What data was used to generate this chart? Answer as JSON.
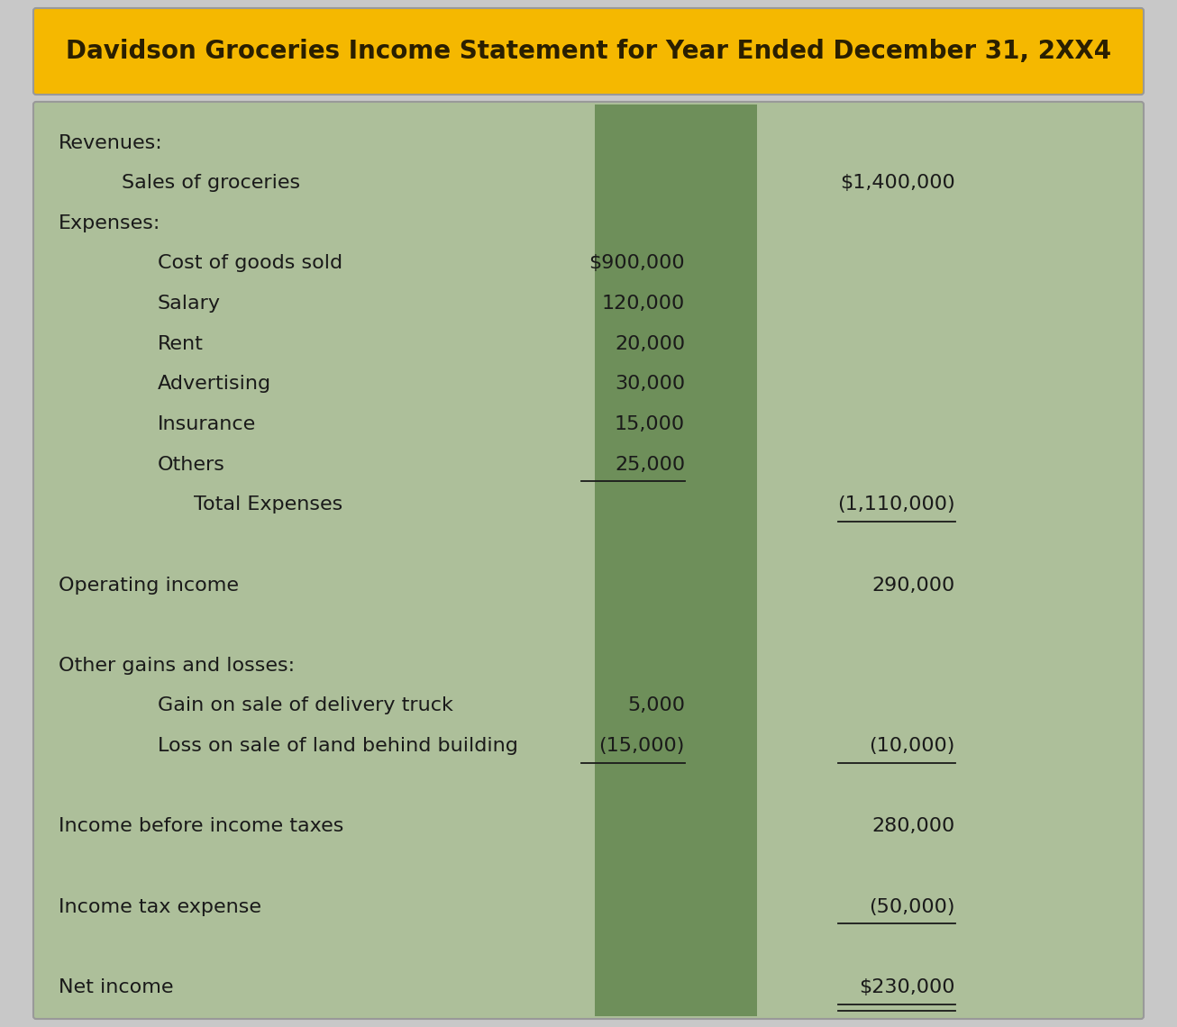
{
  "title": "Davidson Groceries Income Statement for Year Ended December 31, 2XX4",
  "title_bg": "#F5B800",
  "title_color": "#2a1f00",
  "title_fontsize": 20,
  "body_bg_light": "#adbf9a",
  "body_bg_dark": "#6e8f5a",
  "outer_bg": "#c8c8c8",
  "text_color": "#1a1a1a",
  "rows": [
    {
      "indent": 0,
      "label": "Revenues:",
      "col1": "",
      "col2": "",
      "ul1": false,
      "ul2": false,
      "spacer": false
    },
    {
      "indent": 1,
      "label": "Sales of groceries",
      "col1": "",
      "col2": "$1,400,000",
      "ul1": false,
      "ul2": false,
      "spacer": false
    },
    {
      "indent": 0,
      "label": "Expenses:",
      "col1": "",
      "col2": "",
      "ul1": false,
      "ul2": false,
      "spacer": false
    },
    {
      "indent": 2,
      "label": "Cost of goods sold",
      "col1": "$900,000",
      "col2": "",
      "ul1": false,
      "ul2": false,
      "spacer": false
    },
    {
      "indent": 2,
      "label": "Salary",
      "col1": "120,000",
      "col2": "",
      "ul1": false,
      "ul2": false,
      "spacer": false
    },
    {
      "indent": 2,
      "label": "Rent",
      "col1": "20,000",
      "col2": "",
      "ul1": false,
      "ul2": false,
      "spacer": false
    },
    {
      "indent": 2,
      "label": "Advertising",
      "col1": "30,000",
      "col2": "",
      "ul1": false,
      "ul2": false,
      "spacer": false
    },
    {
      "indent": 2,
      "label": "Insurance",
      "col1": "15,000",
      "col2": "",
      "ul1": false,
      "ul2": false,
      "spacer": false
    },
    {
      "indent": 2,
      "label": "Others",
      "col1": "25,000",
      "col2": "",
      "ul1": true,
      "ul2": false,
      "spacer": false
    },
    {
      "indent": 3,
      "label": "Total Expenses",
      "col1": "",
      "col2": "(1,110,000)",
      "ul1": false,
      "ul2": true,
      "spacer": false
    },
    {
      "indent": -1,
      "label": "",
      "col1": "",
      "col2": "",
      "ul1": false,
      "ul2": false,
      "spacer": true
    },
    {
      "indent": 0,
      "label": "Operating income",
      "col1": "",
      "col2": "290,000",
      "ul1": false,
      "ul2": false,
      "spacer": false
    },
    {
      "indent": -1,
      "label": "",
      "col1": "",
      "col2": "",
      "ul1": false,
      "ul2": false,
      "spacer": true
    },
    {
      "indent": 0,
      "label": "Other gains and losses:",
      "col1": "",
      "col2": "",
      "ul1": false,
      "ul2": false,
      "spacer": false
    },
    {
      "indent": 2,
      "label": "Gain on sale of delivery truck",
      "col1": "5,000",
      "col2": "",
      "ul1": false,
      "ul2": false,
      "spacer": false
    },
    {
      "indent": 2,
      "label": "Loss on sale of land behind building",
      "col1": "(15,000)",
      "col2": "(10,000)",
      "ul1": true,
      "ul2": true,
      "spacer": false
    },
    {
      "indent": -1,
      "label": "",
      "col1": "",
      "col2": "",
      "ul1": false,
      "ul2": false,
      "spacer": true
    },
    {
      "indent": 0,
      "label": "Income before income taxes",
      "col1": "",
      "col2": "280,000",
      "ul1": false,
      "ul2": false,
      "spacer": false
    },
    {
      "indent": -1,
      "label": "",
      "col1": "",
      "col2": "",
      "ul1": false,
      "ul2": false,
      "spacer": true
    },
    {
      "indent": 0,
      "label": "Income tax expense",
      "col1": "",
      "col2": "(50,000)",
      "ul1": false,
      "ul2": true,
      "spacer": false
    },
    {
      "indent": -1,
      "label": "",
      "col1": "",
      "col2": "",
      "ul1": false,
      "ul2": false,
      "spacer": true
    },
    {
      "indent": 0,
      "label": "Net income",
      "col1": "",
      "col2": "$230,000",
      "ul1": false,
      "ul2": true,
      "double_ul": true,
      "spacer": false
    }
  ]
}
